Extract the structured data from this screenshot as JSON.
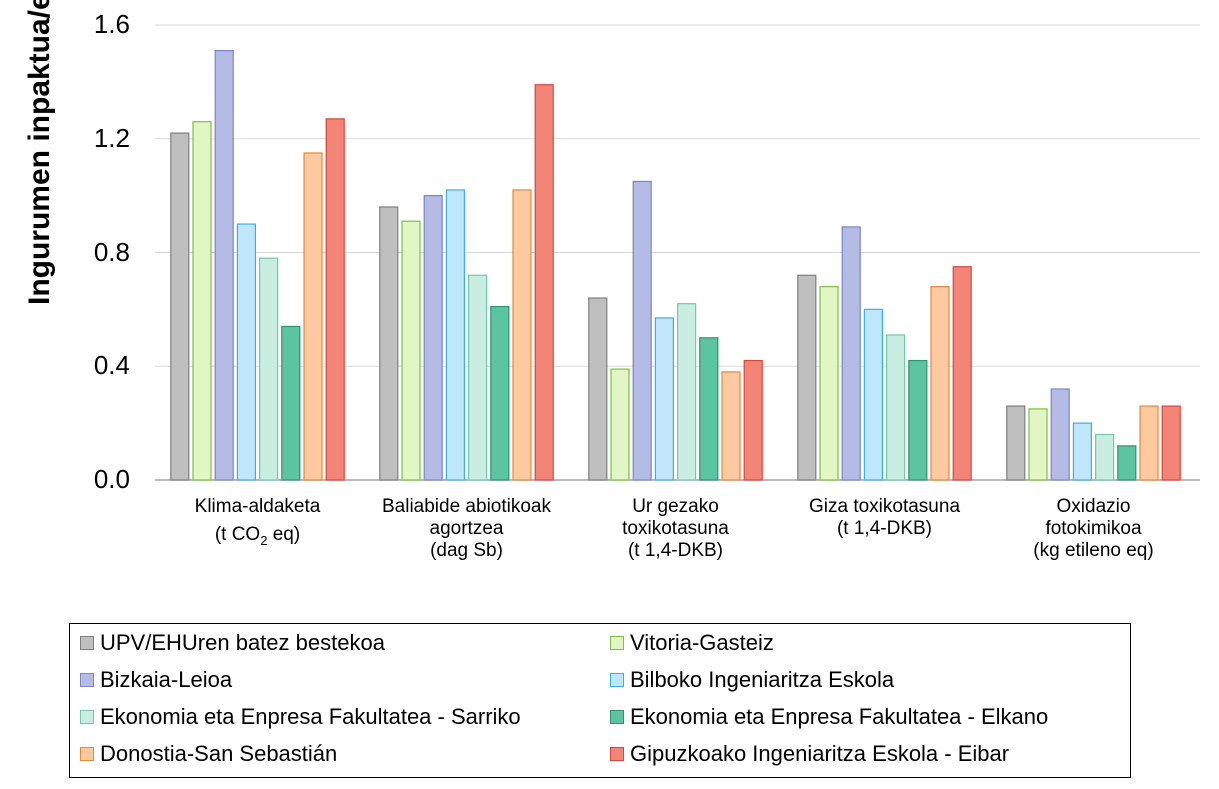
{
  "chart_data": {
    "type": "bar",
    "ylabel": "Ingurumen inpaktua/erabiltzaile",
    "ylim": [
      0,
      1.6
    ],
    "yticks": [
      "0.0",
      "0.4",
      "0.8",
      "1.2",
      "1.6"
    ],
    "ytick_values": [
      0,
      0.4,
      0.8,
      1.2,
      1.6
    ],
    "grid": true,
    "legend_position": "bottom",
    "categories": [
      {
        "line1": "Klima-aldaketa",
        "line2": "(t CO",
        "sub": "2",
        "line2b": " eq)",
        "line3": ""
      },
      {
        "line1": "Baliabide abiotikoak",
        "line2": "agortzea",
        "sub": "",
        "line2b": "",
        "line3": "(dag Sb)"
      },
      {
        "line1": "Ur gezako",
        "line2": "toxikotasuna",
        "sub": "",
        "line2b": "",
        "line3": "(t 1,4-DKB)"
      },
      {
        "line1": "Giza toxikotasuna",
        "line2": "(t 1,4-DKB)",
        "sub": "",
        "line2b": "",
        "line3": ""
      },
      {
        "line1": "Oxidazio",
        "line2": "fotokimikoa",
        "sub": "",
        "line2b": "",
        "line3": "(kg etileno eq)"
      }
    ],
    "series": [
      {
        "name": "UPV/EHUren batez bestekoa",
        "fill": "#bfbfbf",
        "stroke": "#7f7f7f",
        "values": [
          1.22,
          0.96,
          0.64,
          0.72,
          0.26
        ]
      },
      {
        "name": "Vitoria-Gasteiz",
        "fill": "#e2f5c4",
        "stroke": "#7bc143",
        "values": [
          1.26,
          0.91,
          0.39,
          0.68,
          0.25
        ]
      },
      {
        "name": "Bizkaia-Leioa",
        "fill": "#b4bce6",
        "stroke": "#7a86c8",
        "values": [
          1.51,
          1.0,
          1.05,
          0.89,
          0.32
        ]
      },
      {
        "name": "Bilboko Ingeniaritza Eskola",
        "fill": "#bfe6fb",
        "stroke": "#3bb0e8",
        "values": [
          0.9,
          1.02,
          0.57,
          0.6,
          0.2
        ]
      },
      {
        "name": "Ekonomia eta Enpresa Fakultatea - Sarriko",
        "fill": "#c9ede0",
        "stroke": "#72c9a8",
        "values": [
          0.78,
          0.72,
          0.62,
          0.51,
          0.16
        ]
      },
      {
        "name": "Ekonomia eta Enpresa Fakultatea - Elkano",
        "fill": "#5cc4a0",
        "stroke": "#2e9472",
        "values": [
          0.54,
          0.61,
          0.5,
          0.42,
          0.12
        ]
      },
      {
        "name": "Donostia-San Sebastián",
        "fill": "#fcc9a0",
        "stroke": "#e8883a",
        "values": [
          1.15,
          1.02,
          0.38,
          0.68,
          0.26
        ]
      },
      {
        "name": "Gipuzkoako Ingeniaritza Eskola - Eibar",
        "fill": "#f28578",
        "stroke": "#d9463b",
        "values": [
          1.27,
          1.39,
          0.42,
          0.75,
          0.26
        ]
      }
    ]
  }
}
